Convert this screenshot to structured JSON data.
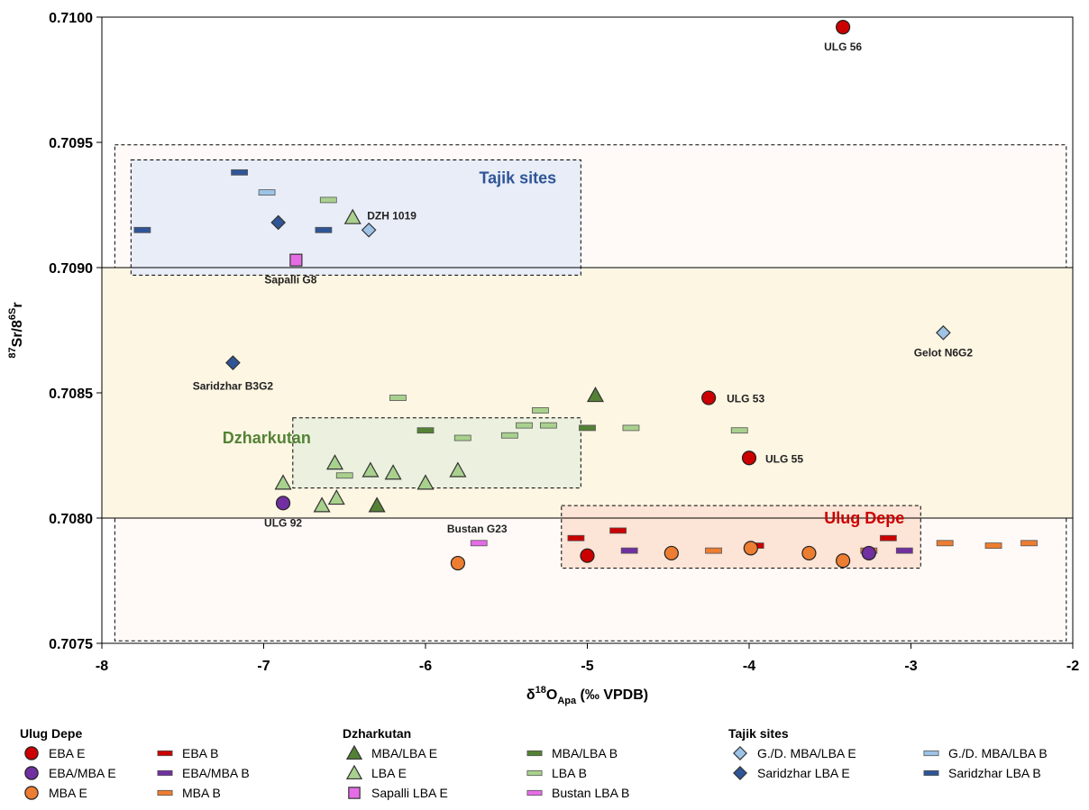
{
  "colors": {
    "eba_red": "#cc0000",
    "eba_mba_purple": "#7030a0",
    "mba_orange": "#ed7d31",
    "dzh_dark_green": "#548235",
    "dzh_light_green": "#a9d18e",
    "sapalli_magenta": "#e66ce6",
    "tajik_light_blue": "#9dc3e6",
    "tajik_dark_blue": "#2f5597",
    "tajik_region_fill": "#e8edf7",
    "dzh_region_fill": "#ebf1de",
    "ulug_region_fill": "#fce4d6",
    "local_band_fill": "#fdf6e3",
    "outer_region_fill": "#fffaf7"
  },
  "chart_data": {
    "type": "scatter",
    "xlabel": "δ18OApa (‰ VPDB)",
    "ylabel": "87Sr/86Sr",
    "xlim": [
      -8,
      -2
    ],
    "ylim": [
      0.7075,
      0.71
    ],
    "x_ticks": [
      "-8",
      "-7",
      "-6",
      "-5",
      "-4",
      "-3",
      "-2"
    ],
    "y_ticks": [
      "0.7075",
      "0.7080",
      "0.7085",
      "0.7090",
      "0.7095",
      "0.7100"
    ],
    "reference_lines_y": [
      0.709,
      0.708
    ],
    "regions": [
      {
        "label": "",
        "x": [
          -7.92,
          -2.04
        ],
        "y": [
          0.70751,
          0.70949
        ],
        "fill": "outer_region_fill"
      },
      {
        "label": "",
        "x": [
          -8.0,
          -2.0
        ],
        "y": [
          0.708,
          0.709
        ],
        "fill": "local_band_fill",
        "solid": true
      },
      {
        "label": "Tajik sites",
        "x": [
          -7.82,
          -5.04
        ],
        "y": [
          0.70897,
          0.70943
        ],
        "fill": "tajik_region_fill",
        "label_color": "tajik_dark_blue"
      },
      {
        "label": "Dzharkutan",
        "x": [
          -6.82,
          -5.04
        ],
        "y": [
          0.70812,
          0.7084
        ],
        "fill": "dzh_region_fill",
        "label_color": "dzh_dark_green"
      },
      {
        "label": "Ulug Depe",
        "x": [
          -5.16,
          -2.94
        ],
        "y": [
          0.7078,
          0.70805
        ],
        "fill": "ulug_region_fill",
        "label_color": "eba_red"
      }
    ],
    "series": [
      {
        "name": "EBA E",
        "marker": "circle",
        "color": "eba_red",
        "points": [
          {
            "x": -3.42,
            "y": 0.70996,
            "label": "ULG 56"
          },
          {
            "x": -4.25,
            "y": 0.70848,
            "label": "ULG 53"
          },
          {
            "x": -4.0,
            "y": 0.70824,
            "label": "ULG 55"
          },
          {
            "x": -5.0,
            "y": 0.70785
          }
        ]
      },
      {
        "name": "EBA/MBA E",
        "marker": "circle",
        "color": "eba_mba_purple",
        "points": [
          {
            "x": -6.88,
            "y": 0.70806,
            "label": "ULG 92"
          },
          {
            "x": -3.26,
            "y": 0.70786
          }
        ]
      },
      {
        "name": "MBA E",
        "marker": "circle",
        "color": "mba_orange",
        "points": [
          {
            "x": -5.8,
            "y": 0.70782
          },
          {
            "x": -4.48,
            "y": 0.70786
          },
          {
            "x": -3.99,
            "y": 0.70788
          },
          {
            "x": -3.63,
            "y": 0.70786
          },
          {
            "x": -3.42,
            "y": 0.70783
          }
        ]
      },
      {
        "name": "EBA B",
        "marker": "bar",
        "color": "eba_red",
        "points": [
          {
            "x": -5.07,
            "y": 0.70792
          },
          {
            "x": -4.81,
            "y": 0.70795
          },
          {
            "x": -3.96,
            "y": 0.70789
          },
          {
            "x": -3.14,
            "y": 0.70792
          }
        ]
      },
      {
        "name": "EBA/MBA B",
        "marker": "bar",
        "color": "eba_mba_purple",
        "points": [
          {
            "x": -4.74,
            "y": 0.70787
          },
          {
            "x": -3.04,
            "y": 0.70787
          }
        ]
      },
      {
        "name": "MBA B",
        "marker": "bar",
        "color": "mba_orange",
        "points": [
          {
            "x": -4.22,
            "y": 0.70787
          },
          {
            "x": -3.26,
            "y": 0.70787
          },
          {
            "x": -2.79,
            "y": 0.7079
          },
          {
            "x": -2.49,
            "y": 0.70789
          },
          {
            "x": -2.27,
            "y": 0.7079
          }
        ]
      },
      {
        "name": "MBA/LBA E",
        "marker": "triangle",
        "color": "dzh_dark_green",
        "points": [
          {
            "x": -6.3,
            "y": 0.70805
          },
          {
            "x": -4.95,
            "y": 0.70849
          }
        ]
      },
      {
        "name": "LBA E",
        "marker": "triangle",
        "color": "dzh_light_green",
        "points": [
          {
            "x": -6.45,
            "y": 0.7092,
            "label": "DZH 1019"
          },
          {
            "x": -6.88,
            "y": 0.70814
          },
          {
            "x": -6.56,
            "y": 0.70822
          },
          {
            "x": -6.34,
            "y": 0.70819
          },
          {
            "x": -6.2,
            "y": 0.70818
          },
          {
            "x": -5.8,
            "y": 0.70819
          },
          {
            "x": -6.0,
            "y": 0.70814
          },
          {
            "x": -6.64,
            "y": 0.70805
          },
          {
            "x": -6.55,
            "y": 0.70808
          }
        ]
      },
      {
        "name": "Sapalli LBA E",
        "marker": "square",
        "color": "sapalli_magenta",
        "points": [
          {
            "x": -6.8,
            "y": 0.70903,
            "label": "Sapalli G8"
          }
        ]
      },
      {
        "name": "MBA/LBA B",
        "marker": "bar",
        "color": "dzh_dark_green",
        "points": [
          {
            "x": -6.0,
            "y": 0.70835
          },
          {
            "x": -5.0,
            "y": 0.70836
          }
        ]
      },
      {
        "name": "LBA B",
        "marker": "bar",
        "color": "dzh_light_green",
        "points": [
          {
            "x": -6.6,
            "y": 0.70927
          },
          {
            "x": -6.17,
            "y": 0.70848
          },
          {
            "x": -5.29,
            "y": 0.70843
          },
          {
            "x": -5.39,
            "y": 0.70837
          },
          {
            "x": -5.24,
            "y": 0.70837
          },
          {
            "x": -5.48,
            "y": 0.70833
          },
          {
            "x": -5.77,
            "y": 0.70832
          },
          {
            "x": -4.73,
            "y": 0.70836
          },
          {
            "x": -4.06,
            "y": 0.70835
          },
          {
            "x": -6.5,
            "y": 0.70817
          }
        ]
      },
      {
        "name": "Bustan LBA B",
        "marker": "bar",
        "color": "sapalli_magenta",
        "points": [
          {
            "x": -5.67,
            "y": 0.7079,
            "label": "Bustan G23"
          }
        ]
      },
      {
        "name": "G./D. MBA/LBA E",
        "marker": "diamond",
        "color": "tajik_light_blue",
        "points": [
          {
            "x": -6.35,
            "y": 0.70915
          },
          {
            "x": -2.8,
            "y": 0.70874,
            "label": "Gelot N6G2"
          }
        ]
      },
      {
        "name": "G./D. MBA/LBA B",
        "marker": "bar",
        "color": "tajik_light_blue",
        "points": [
          {
            "x": -6.98,
            "y": 0.7093
          }
        ]
      },
      {
        "name": "Saridzhar LBA E",
        "marker": "diamond",
        "color": "tajik_dark_blue",
        "points": [
          {
            "x": -6.91,
            "y": 0.70918
          },
          {
            "x": -7.19,
            "y": 0.70862,
            "label": "Saridzhar  B3G2"
          }
        ]
      },
      {
        "name": "Saridzhar LBA B",
        "marker": "bar",
        "color": "tajik_dark_blue",
        "points": [
          {
            "x": -7.15,
            "y": 0.70938
          },
          {
            "x": -7.75,
            "y": 0.70915
          },
          {
            "x": -6.63,
            "y": 0.70915
          }
        ]
      }
    ]
  },
  "legend": {
    "groups": [
      {
        "title": "Ulug Depe",
        "items": [
          {
            "label": "EBA E",
            "marker": "circle",
            "color": "eba_red"
          },
          {
            "label": "EBA B",
            "marker": "bar",
            "color": "eba_red"
          },
          {
            "label": "EBA/MBA E",
            "marker": "circle",
            "color": "eba_mba_purple"
          },
          {
            "label": "EBA/MBA B",
            "marker": "bar",
            "color": "eba_mba_purple"
          },
          {
            "label": "MBA E",
            "marker": "circle",
            "color": "mba_orange"
          },
          {
            "label": "MBA B",
            "marker": "bar",
            "color": "mba_orange"
          }
        ]
      },
      {
        "title": "Dzharkutan",
        "items": [
          {
            "label": "MBA/LBA E",
            "marker": "triangle",
            "color": "dzh_dark_green"
          },
          {
            "label": "MBA/LBA B",
            "marker": "bar",
            "color": "dzh_dark_green"
          },
          {
            "label": "LBA E",
            "marker": "triangle",
            "color": "dzh_light_green"
          },
          {
            "label": "LBA B",
            "marker": "bar",
            "color": "dzh_light_green"
          },
          {
            "label": "Sapalli LBA E",
            "marker": "square",
            "color": "sapalli_magenta"
          },
          {
            "label": "Bustan LBA B",
            "marker": "bar",
            "color": "sapalli_magenta"
          }
        ]
      },
      {
        "title": "Tajik sites",
        "items": [
          {
            "label": "G./D. MBA/LBA E",
            "marker": "diamond",
            "color": "tajik_light_blue"
          },
          {
            "label": "G./D. MBA/LBA B",
            "marker": "bar",
            "color": "tajik_light_blue"
          },
          {
            "label": "Saridzhar LBA E",
            "marker": "diamond",
            "color": "tajik_dark_blue"
          },
          {
            "label": "Saridzhar LBA B",
            "marker": "bar",
            "color": "tajik_dark_blue"
          }
        ]
      }
    ]
  }
}
